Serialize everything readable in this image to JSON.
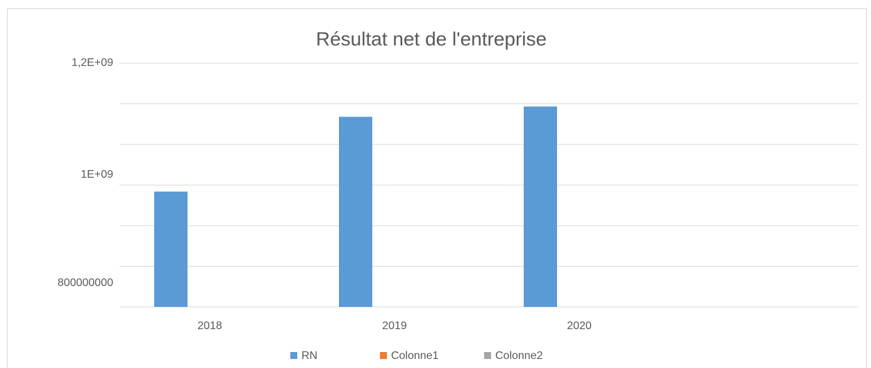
{
  "chart_data": {
    "type": "bar",
    "title": "Résultat net de l'entreprise",
    "categories": [
      "2018",
      "2019",
      "2020",
      null
    ],
    "series": [
      {
        "name": "RN",
        "color": "#5b9bd5",
        "values": [
          963000000,
          1101000000,
          1120000000,
          null
        ]
      },
      {
        "name": "Colonne1",
        "color": "#ed7d31",
        "values": [
          null,
          null,
          null,
          null
        ]
      },
      {
        "name": "Colonne2",
        "color": "#a5a5a5",
        "values": [
          null,
          null,
          null,
          null
        ]
      }
    ],
    "ylim": [
      750000000,
      1200000000
    ],
    "yticks": [
      {
        "value": 1200000000,
        "label": "1,2E+09"
      },
      {
        "value": 1000000000,
        "label": "1E+09"
      },
      800000000
    ],
    "ygrid": [
      750000000,
      825000000,
      900000000,
      975000000,
      1050000000,
      1125000000,
      1200000000
    ],
    "grid": true,
    "legend": "bottom"
  }
}
